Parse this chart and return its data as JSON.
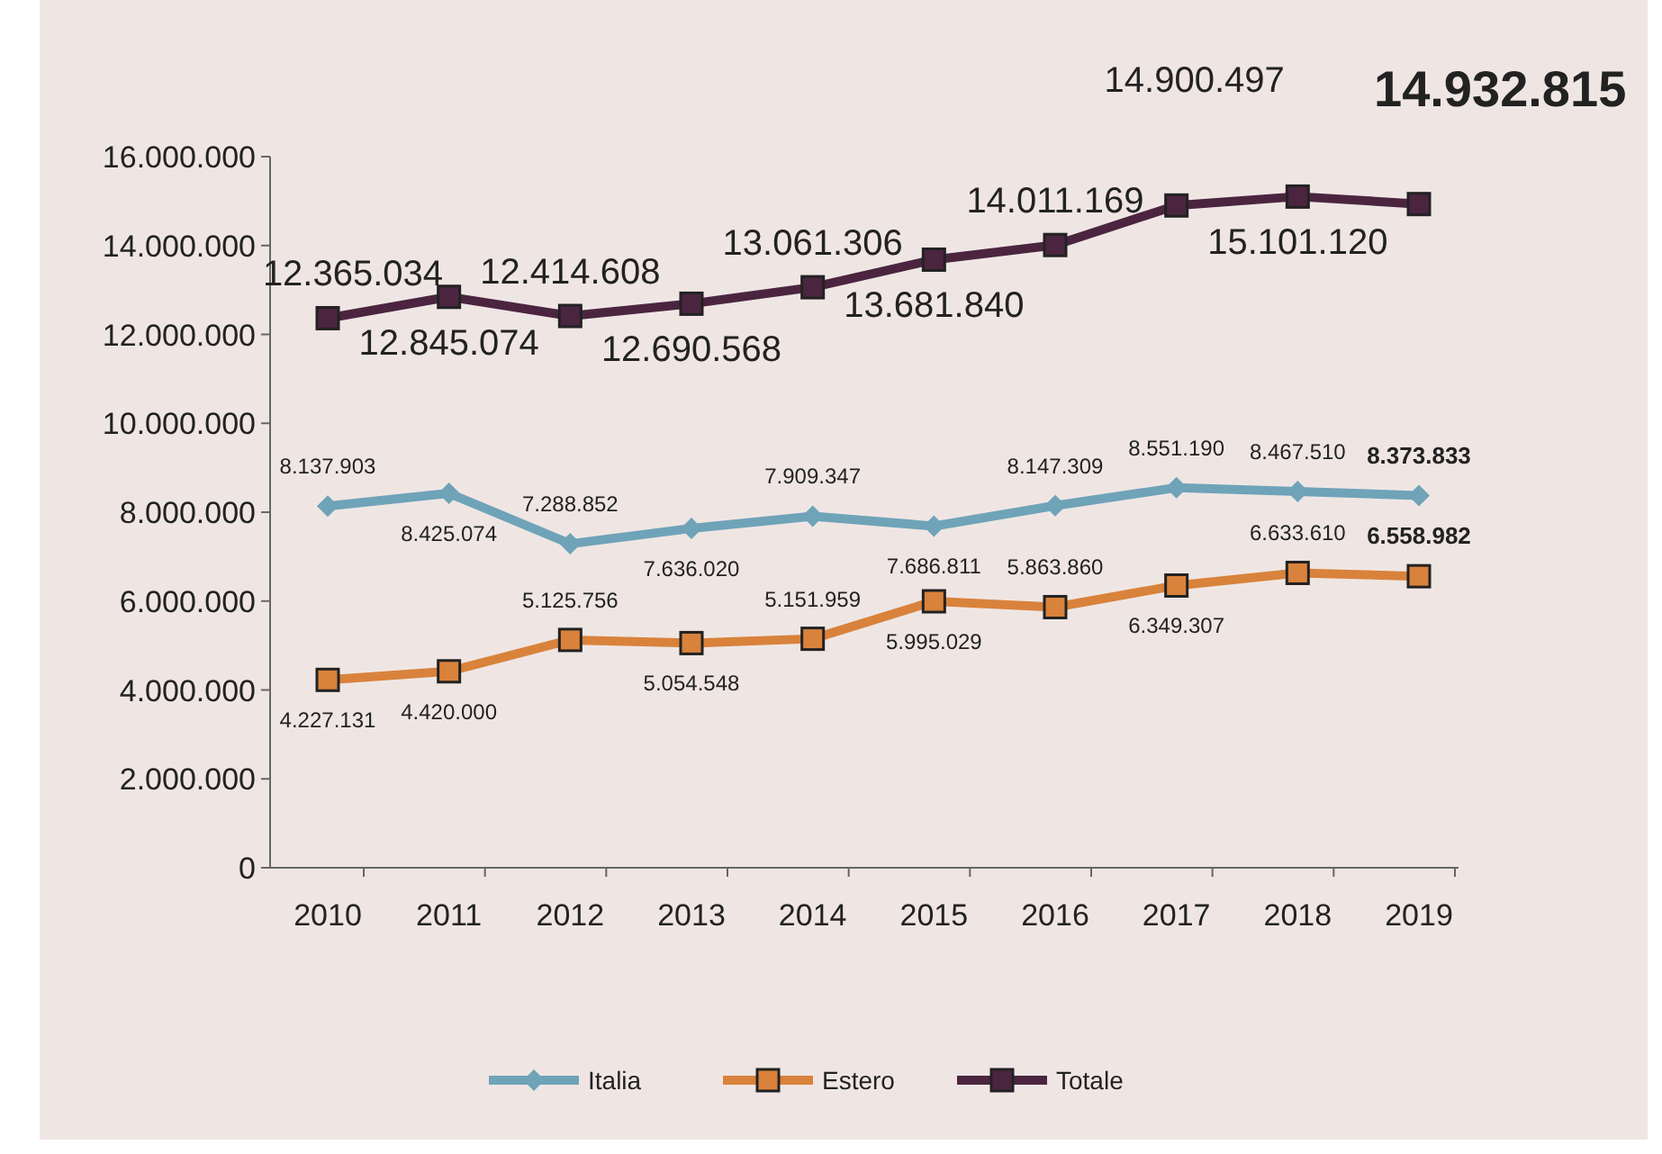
{
  "chart_data": {
    "type": "line",
    "categories": [
      "2010",
      "2011",
      "2012",
      "2013",
      "2014",
      "2015",
      "2016",
      "2017",
      "2018",
      "2019"
    ],
    "ylim": [
      0,
      16000000
    ],
    "yticks": [
      {
        "value": 0,
        "label": "0"
      },
      {
        "value": 2000000,
        "label": "2.000.000"
      },
      {
        "value": 4000000,
        "label": "4.000.000"
      },
      {
        "value": 6000000,
        "label": "6.000.000"
      },
      {
        "value": 8000000,
        "label": "8.000.000"
      },
      {
        "value": 10000000,
        "label": "10.000.000"
      },
      {
        "value": 12000000,
        "label": "12.000.000"
      },
      {
        "value": 14000000,
        "label": "14.000.000"
      },
      {
        "value": 16000000,
        "label": "16.000.000"
      }
    ],
    "grid": false,
    "legend": "bottom",
    "series": [
      {
        "name": "Italia",
        "color": "#6fa3b8",
        "marker": "diamond",
        "values": [
          8137903,
          8425074,
          7288852,
          7636020,
          7909347,
          7686811,
          8147309,
          8551190,
          8467510,
          8373833
        ],
        "value_labels": [
          "8.137.903",
          "8.425.074",
          "7.288.852",
          "7.636.020",
          "7.909.347",
          "7.686.811",
          "8.147.309",
          "8.551.190",
          "8.467.510",
          "8.373.833"
        ]
      },
      {
        "name": "Estero",
        "color": "#d9823b",
        "marker": "square",
        "values": [
          4227131,
          4420000,
          5125756,
          5054548,
          5151959,
          5995029,
          5863860,
          6349307,
          6633610,
          6558982
        ],
        "value_labels": [
          "4.227.131",
          "4.420.000",
          "5.125.756",
          "5.054.548",
          "5.151.959",
          "5.995.029",
          "5.863.860",
          "6.349.307",
          "6.633.610",
          "6.558.982"
        ]
      },
      {
        "name": "Totale",
        "color": "#4b2540",
        "marker": "square",
        "values": [
          12365034,
          12845074,
          12414608,
          12690568,
          13061306,
          13681840,
          14011169,
          14900497,
          15101120,
          14932815
        ],
        "value_labels": [
          "12.365.034",
          "12.845.074",
          "12.414.608",
          "12.690.568",
          "13.061.306",
          "13.681.840",
          "14.011.169",
          "14.900.497",
          "15.101.120",
          "14.932.815"
        ]
      }
    ]
  }
}
